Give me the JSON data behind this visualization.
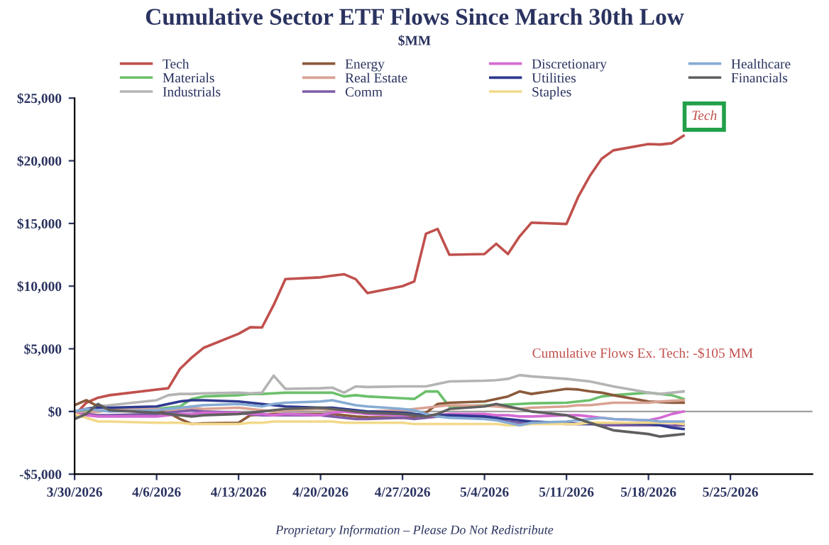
{
  "chart_data": {
    "type": "line",
    "title": "Cumulative Sector ETF Flows Since March 30th Low",
    "subtitle": "$MM",
    "x": [
      "2026-03-30",
      "2026-03-31",
      "2026-04-01",
      "2026-04-02",
      "2026-04-06",
      "2026-04-07",
      "2026-04-08",
      "2026-04-09",
      "2026-04-10",
      "2026-04-13",
      "2026-04-14",
      "2026-04-15",
      "2026-04-16",
      "2026-04-17",
      "2026-04-20",
      "2026-04-21",
      "2026-04-22",
      "2026-04-23",
      "2026-04-24",
      "2026-04-27",
      "2026-04-28",
      "2026-04-29",
      "2026-04-30",
      "2026-05-01",
      "2026-05-04",
      "2026-05-05",
      "2026-05-06",
      "2026-05-07",
      "2026-05-08",
      "2026-05-11",
      "2026-05-12",
      "2026-05-13",
      "2026-05-14",
      "2026-05-15",
      "2026-05-18",
      "2026-05-19",
      "2026-05-20",
      "2026-05-21"
    ],
    "series": [
      {
        "name": "Tech",
        "color": "#c0504d",
        "values": [
          -300,
          700,
          1100,
          1300,
          1750,
          1850,
          3400,
          4300,
          5070,
          6200,
          6720,
          6700,
          8500,
          10560,
          10700,
          10830,
          10950,
          10560,
          9450,
          10000,
          10370,
          14180,
          14560,
          12500,
          12560,
          13380,
          12560,
          13970,
          15060,
          14960,
          17120,
          18800,
          20160,
          20830,
          21330,
          21300,
          21400,
          22000
        ]
      },
      {
        "name": "Materials",
        "color": "#6cc06c",
        "values": [
          0,
          100,
          0,
          100,
          200,
          300,
          400,
          1000,
          1200,
          1300,
          1400,
          1400,
          1450,
          1500,
          1500,
          1500,
          1200,
          1300,
          1200,
          1050,
          1000,
          1600,
          1600,
          400,
          500,
          500,
          550,
          600,
          650,
          700,
          800,
          900,
          1200,
          1300,
          1500,
          1400,
          1300,
          1000
        ]
      },
      {
        "name": "Industrials",
        "color": "#b4b4b4",
        "values": [
          0,
          200,
          400,
          500,
          900,
          1300,
          1400,
          1400,
          1450,
          1500,
          1450,
          1500,
          2860,
          1800,
          1850,
          1900,
          1500,
          2000,
          1950,
          2000,
          2000,
          2000,
          2200,
          2400,
          2450,
          2500,
          2600,
          2900,
          2800,
          2600,
          2500,
          2400,
          2200,
          2000,
          1500,
          1400,
          1500,
          1600
        ]
      },
      {
        "name": "Energy",
        "color": "#8b5a3c",
        "values": [
          500,
          900,
          400,
          200,
          0,
          -100,
          -600,
          -1000,
          -950,
          -900,
          -300,
          -250,
          -200,
          -200,
          -200,
          -200,
          -300,
          -400,
          -450,
          -500,
          -500,
          -100,
          600,
          700,
          800,
          1000,
          1200,
          1600,
          1400,
          1800,
          1750,
          1600,
          1500,
          1300,
          800,
          750,
          700,
          700
        ]
      },
      {
        "name": "Real Estate",
        "color": "#d9a293",
        "values": [
          -200,
          -100,
          0,
          100,
          200,
          100,
          200,
          300,
          200,
          300,
          200,
          100,
          0,
          100,
          200,
          100,
          0,
          -100,
          0,
          100,
          200,
          300,
          400,
          500,
          450,
          400,
          300,
          200,
          300,
          400,
          500,
          500,
          600,
          700,
          700,
          800,
          850,
          900
        ]
      },
      {
        "name": "Comm",
        "color": "#7d5ba6",
        "values": [
          -300,
          -200,
          -300,
          -300,
          -200,
          -100,
          0,
          100,
          0,
          -100,
          -200,
          -300,
          -300,
          -300,
          -300,
          -400,
          -500,
          -600,
          -600,
          -500,
          -600,
          -500,
          -400,
          -400,
          -500,
          -600,
          -800,
          -900,
          -900,
          -1000,
          -1000,
          -1000,
          -1100,
          -1100,
          -1100,
          -1100,
          -1150,
          -1100
        ]
      },
      {
        "name": "Discretionary",
        "color": "#d46ad4",
        "values": [
          -200,
          -300,
          -400,
          -400,
          -400,
          -300,
          -200,
          -200,
          -100,
          -100,
          -200,
          -200,
          -300,
          -200,
          -300,
          -100,
          0,
          -100,
          -200,
          -300,
          -300,
          -400,
          -300,
          -200,
          -200,
          -300,
          -300,
          -400,
          -400,
          -300,
          -300,
          -400,
          -500,
          -600,
          -700,
          -500,
          -200,
          0
        ]
      },
      {
        "name": "Utilities",
        "color": "#2f3a8f",
        "values": [
          0,
          200,
          300,
          300,
          400,
          600,
          800,
          900,
          900,
          800,
          700,
          600,
          500,
          400,
          300,
          300,
          200,
          100,
          0,
          -100,
          -200,
          -300,
          -300,
          -300,
          -400,
          -500,
          -600,
          -700,
          -800,
          -900,
          -1000,
          -1000,
          -900,
          -900,
          -1000,
          -1100,
          -1300,
          -1400
        ]
      },
      {
        "name": "Staples",
        "color": "#f2d98a",
        "values": [
          -200,
          -500,
          -800,
          -800,
          -900,
          -900,
          -900,
          -1000,
          -1000,
          -1000,
          -900,
          -900,
          -800,
          -800,
          -800,
          -800,
          -900,
          -900,
          -900,
          -900,
          -1000,
          -1000,
          -1000,
          -1000,
          -1000,
          -1000,
          -1100,
          -1100,
          -1000,
          -1000,
          -1000,
          -900,
          -900,
          -900,
          -900,
          -900,
          -900,
          -1000
        ]
      },
      {
        "name": "Healthcare",
        "color": "#86abd4",
        "values": [
          0,
          200,
          100,
          0,
          100,
          200,
          300,
          400,
          500,
          600,
          500,
          400,
          600,
          700,
          800,
          900,
          700,
          500,
          400,
          200,
          100,
          -200,
          -400,
          -500,
          -600,
          -700,
          -900,
          -1100,
          -900,
          -800,
          -700,
          -600,
          -500,
          -600,
          -700,
          -800,
          -800,
          -800
        ]
      },
      {
        "name": "Financials",
        "color": "#5f5f5f",
        "values": [
          -600,
          -200,
          600,
          100,
          -100,
          -200,
          -300,
          -400,
          -300,
          -200,
          -100,
          0,
          100,
          200,
          300,
          200,
          100,
          0,
          -100,
          -200,
          -300,
          -400,
          -200,
          200,
          400,
          600,
          400,
          200,
          0,
          -300,
          -600,
          -900,
          -1200,
          -1500,
          -1800,
          -2000,
          -1900,
          -1800
        ]
      }
    ],
    "xlim": [
      "2026-03-30",
      "2026-06-01"
    ],
    "xticks": [
      {
        "value": "2026-03-30",
        "label": "3/30/2026"
      },
      {
        "value": "2026-04-06",
        "label": "4/6/2026"
      },
      {
        "value": "2026-04-13",
        "label": "4/13/2026"
      },
      {
        "value": "2026-04-20",
        "label": "4/20/2026"
      },
      {
        "value": "2026-04-27",
        "label": "4/27/2026"
      },
      {
        "value": "2026-05-04",
        "label": "5/4/2026"
      },
      {
        "value": "2026-05-11",
        "label": "5/11/2026"
      },
      {
        "value": "2026-05-18",
        "label": "5/18/2026"
      },
      {
        "value": "2026-05-25",
        "label": "5/25/2026"
      }
    ],
    "ylim": [
      -5000,
      25000
    ],
    "yticks": [
      {
        "value": -5000,
        "label": "-$5,000"
      },
      {
        "value": 0,
        "label": "$0"
      },
      {
        "value": 5000,
        "label": "$5,000"
      },
      {
        "value": 10000,
        "label": "$10,000"
      },
      {
        "value": 15000,
        "label": "$15,000"
      },
      {
        "value": 20000,
        "label": "$20,000"
      },
      {
        "value": 25000,
        "label": "$25,000"
      }
    ],
    "ref_lines": [
      {
        "axis": "y",
        "value": 0,
        "color": "#a0a0a0"
      }
    ],
    "annotations": [
      {
        "text": "Tech",
        "x": "2026-05-21",
        "y": 22000
      },
      "Cumulative Flows Ex. Tech: -$105 MM",
      "Proprietary Information – Please Do Not Redistribute"
    ],
    "legend": "top",
    "grid": false,
    "marker": "none",
    "line_style": "solid"
  }
}
